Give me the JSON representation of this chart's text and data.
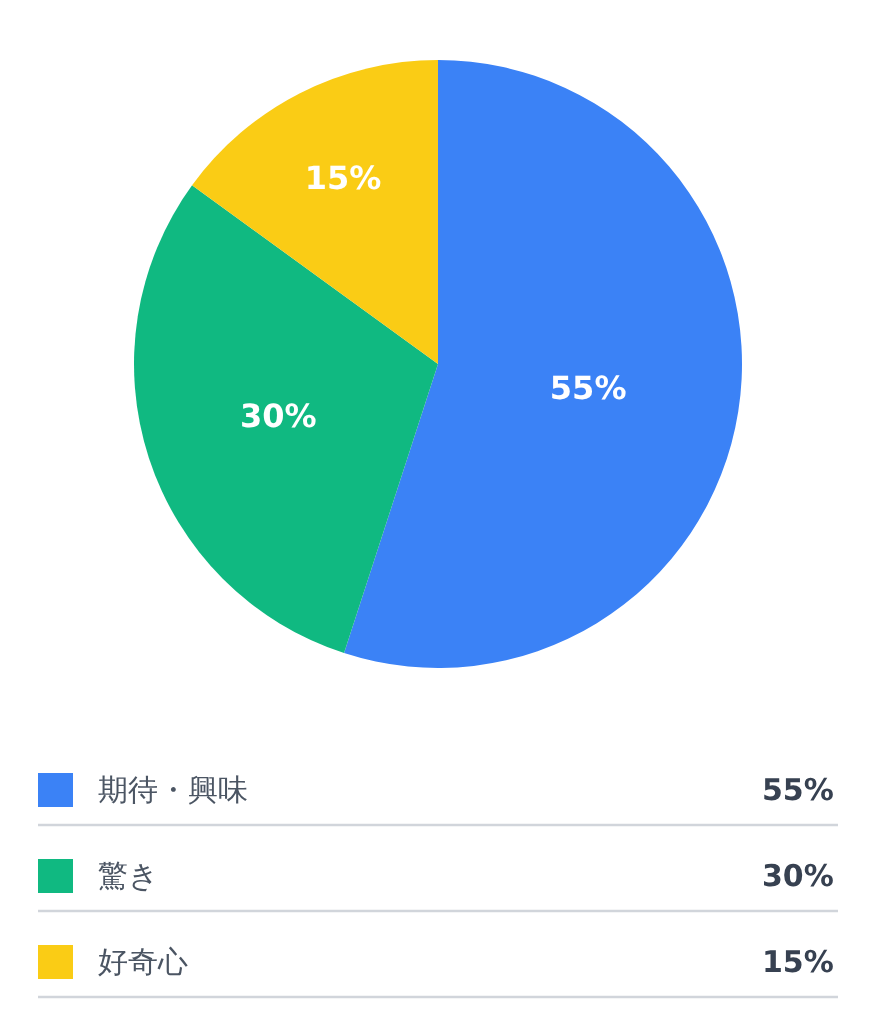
{
  "chart_data": {
    "type": "pie",
    "categories": [
      "期待・興味",
      "驚き",
      "好奇心"
    ],
    "values": [
      55,
      30,
      15
    ],
    "colors": [
      "#3b82f6",
      "#10b981",
      "#facc15"
    ],
    "value_labels": [
      "55%",
      "30%",
      "15%"
    ],
    "legend": "bottom"
  }
}
